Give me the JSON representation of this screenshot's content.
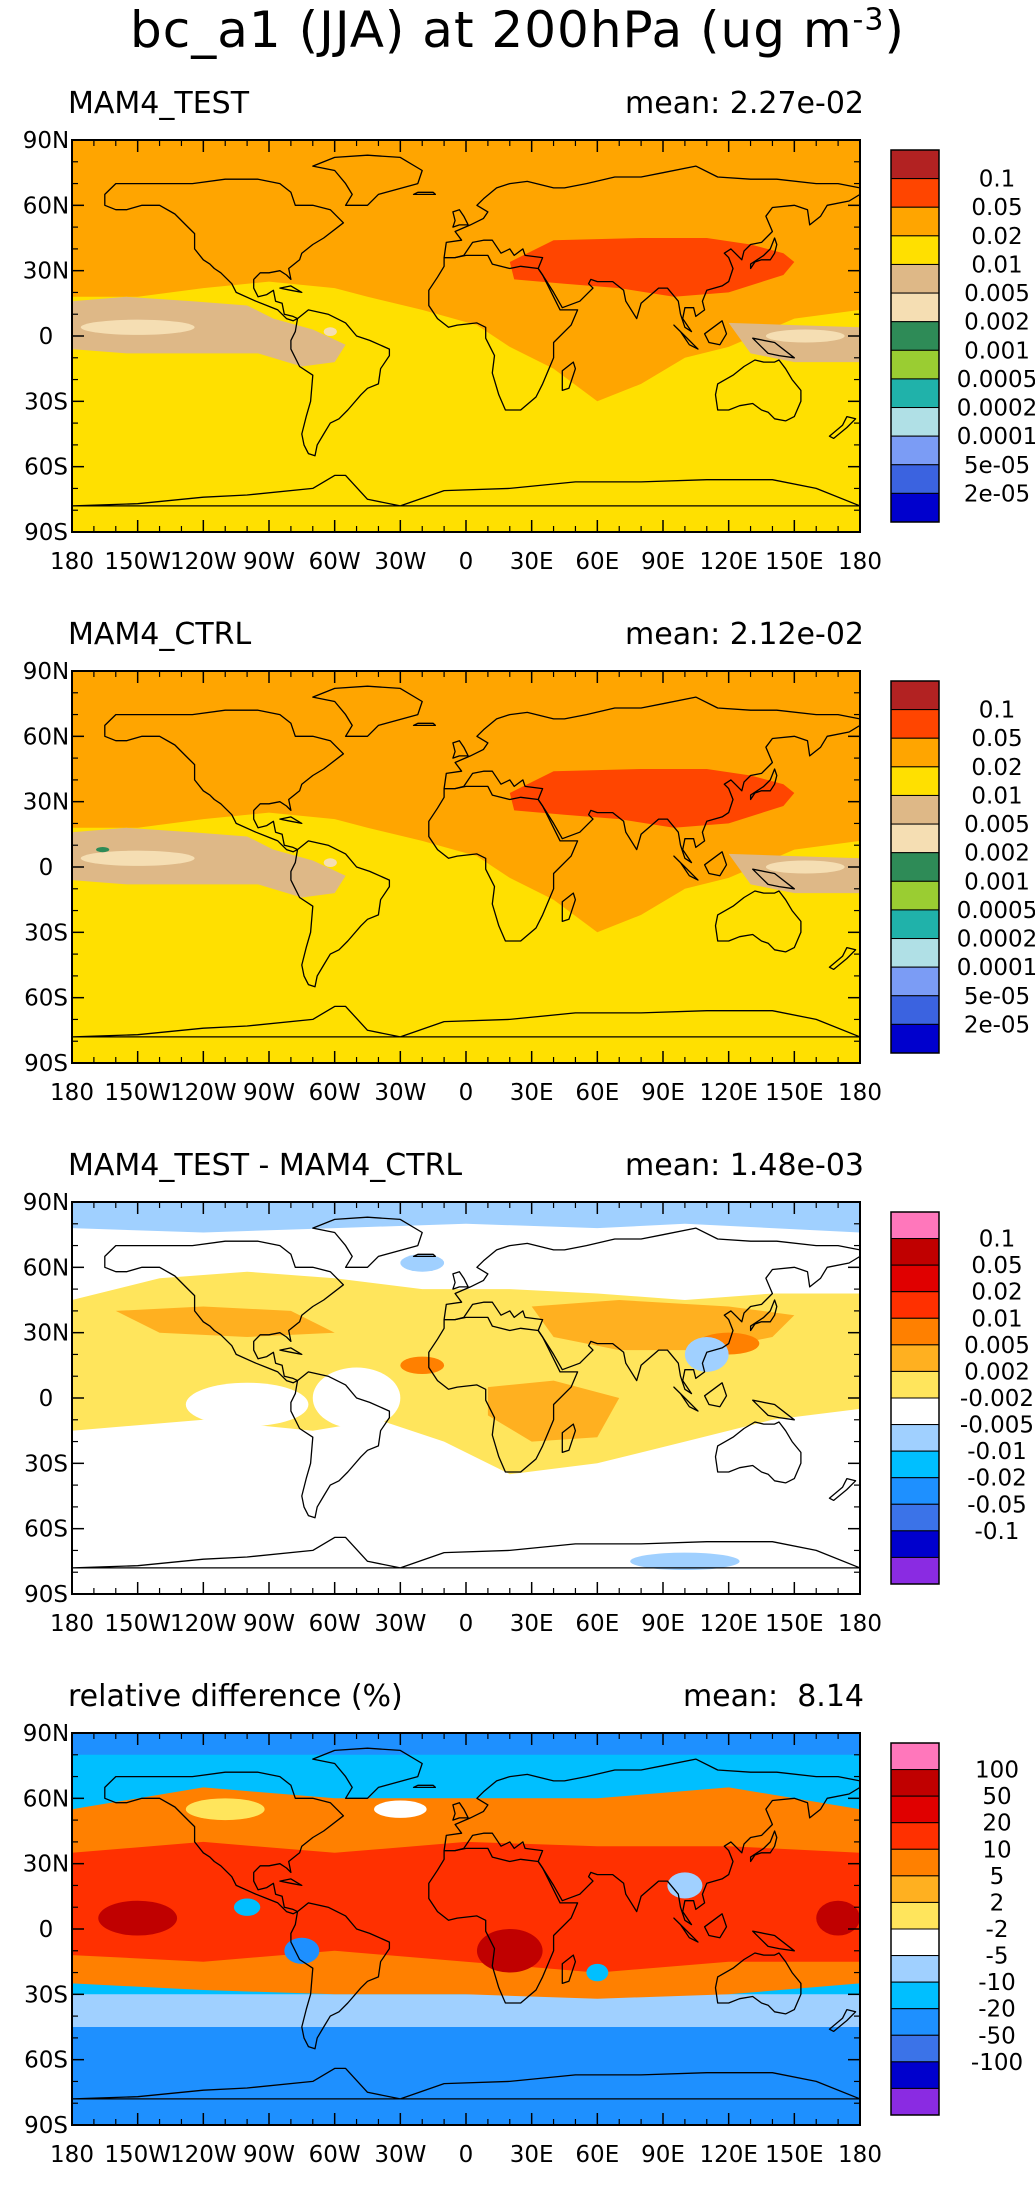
{
  "figure": {
    "title_main": "bc_a1 (JJA) at 200hPa (ug m",
    "title_sup": "-3",
    "title_close": ")",
    "colors": {
      "abs_levels": [
        "#0000cd",
        "#3b63e0",
        "#7b9cf5",
        "#b0e0e6",
        "#20b2aa",
        "#9acd32",
        "#2e8b57",
        "#f5deb3",
        "#deb887",
        "#ffe000",
        "#ffa500",
        "#ff4500",
        "#b22222"
      ],
      "diff_levels": [
        "#8a2be2",
        "#0000cd",
        "#3b73e8",
        "#1e90ff",
        "#00bfff",
        "#a0d0ff",
        "#ffffff",
        "#ffe55c",
        "#ffb020",
        "#ff8000",
        "#ff3000",
        "#e00000",
        "#c00000",
        "#ff77bb"
      ]
    }
  },
  "axes": {
    "lon_labels": [
      "180",
      "150W",
      "120W",
      "90W",
      "60W",
      "30W",
      "0",
      "30E",
      "60E",
      "90E",
      "120E",
      "150E",
      "180"
    ],
    "lat_labels": [
      "90N",
      "60N",
      "30N",
      "0",
      "30S",
      "60S",
      "90S"
    ]
  },
  "panels": [
    {
      "title": "MAM4_TEST",
      "mean": "mean: 2.27e-02",
      "type": "absolute",
      "colorbar_labels": [
        "0.1",
        "0.05",
        "0.02",
        "0.01",
        "0.005",
        "0.002",
        "0.001",
        "0.0005",
        "0.0002",
        "0.0001",
        "5e-05",
        "2e-05"
      ]
    },
    {
      "title": "MAM4_CTRL",
      "mean": "mean: 2.12e-02",
      "type": "absolute",
      "colorbar_labels": [
        "0.1",
        "0.05",
        "0.02",
        "0.01",
        "0.005",
        "0.002",
        "0.001",
        "0.0005",
        "0.0002",
        "0.0001",
        "5e-05",
        "2e-05"
      ]
    },
    {
      "title": "MAM4_TEST - MAM4_CTRL",
      "mean": "mean: 1.48e-03",
      "type": "difference",
      "colorbar_labels": [
        "0.1",
        "0.05",
        "0.02",
        "0.01",
        "0.005",
        "0.002",
        "-0.002",
        "-0.005",
        "-0.01",
        "-0.02",
        "-0.05",
        "-0.1"
      ]
    },
    {
      "title": "relative difference (%)",
      "mean": "mean:  8.14",
      "type": "relative",
      "colorbar_labels": [
        "100",
        "50",
        "20",
        "10",
        "5",
        "2",
        "-2",
        "-5",
        "-10",
        "-20",
        "-50",
        "-100"
      ]
    }
  ]
}
